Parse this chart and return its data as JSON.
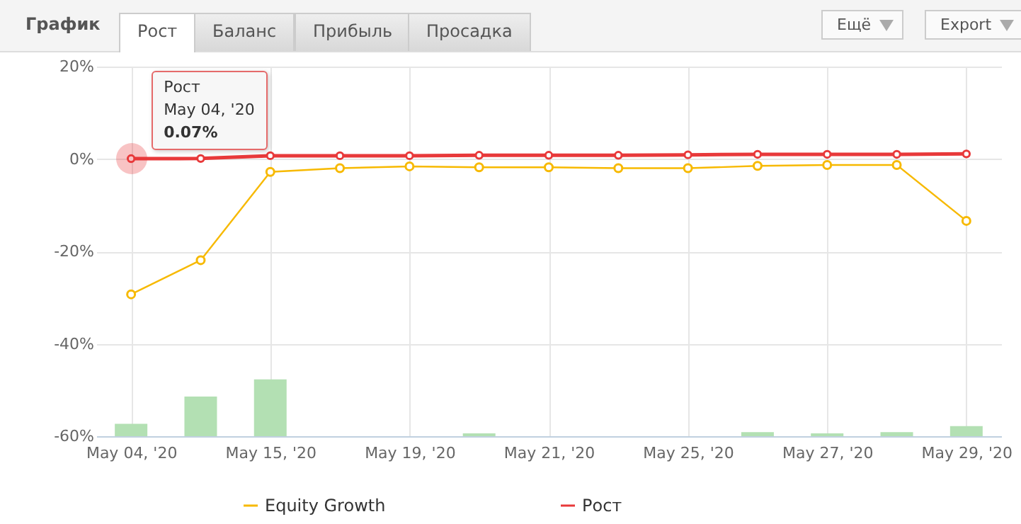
{
  "chart_data": {
    "type": "line",
    "title": "График",
    "annotations": [
      {
        "text": "Рост\nMay 04, '20\n0.07%",
        "x": "May 04, '20",
        "y": 0.07
      },
      "Рост",
      "Баланс",
      "Прибыль",
      "Просадка",
      "Ещё",
      "Export"
    ],
    "categories": [
      "May 04, '20",
      null,
      "May 15, '20",
      null,
      "May 19, '20",
      null,
      "May 21, '20",
      null,
      "May 25, '20",
      null,
      "May 27, '20",
      null,
      "May 29, '20"
    ],
    "series": [
      {
        "type": "bar",
        "color": "#b3e0b3",
        "base": [
          -60,
          -60,
          -60,
          null,
          null,
          -60,
          null,
          null,
          null,
          -60,
          -60,
          -60,
          -60
        ],
        "values": [
          2.7,
          8.6,
          12.3,
          null,
          null,
          0.6,
          null,
          null,
          null,
          0.9,
          0.6,
          0.9,
          2.2
        ]
      },
      {
        "name": "Equity Growth",
        "color": "#f7b900",
        "values": [
          -29.3,
          -21.9,
          -2.8,
          -2.0,
          -1.6,
          -1.8,
          -1.8,
          -2.0,
          -2.0,
          -1.5,
          -1.3,
          -1.3,
          -13.4
        ]
      },
      {
        "name": "Рост",
        "color": "#e8393a",
        "values": [
          0.07,
          0.1,
          0.7,
          0.7,
          0.7,
          0.8,
          0.8,
          0.8,
          0.9,
          1.0,
          1.0,
          1.0,
          1.1
        ]
      }
    ],
    "ylim": [
      -60,
      20
    ],
    "yticks": [
      {
        "value": -60,
        "label": "-60%"
      },
      {
        "value": -40,
        "label": "-40%"
      },
      {
        "value": -20,
        "label": "-20%"
      },
      {
        "value": 0,
        "label": "0%"
      },
      {
        "value": 20,
        "label": "20%"
      }
    ],
    "grid": true,
    "legend": "bottom",
    "marker": "circle",
    "line_style": "solid"
  }
}
